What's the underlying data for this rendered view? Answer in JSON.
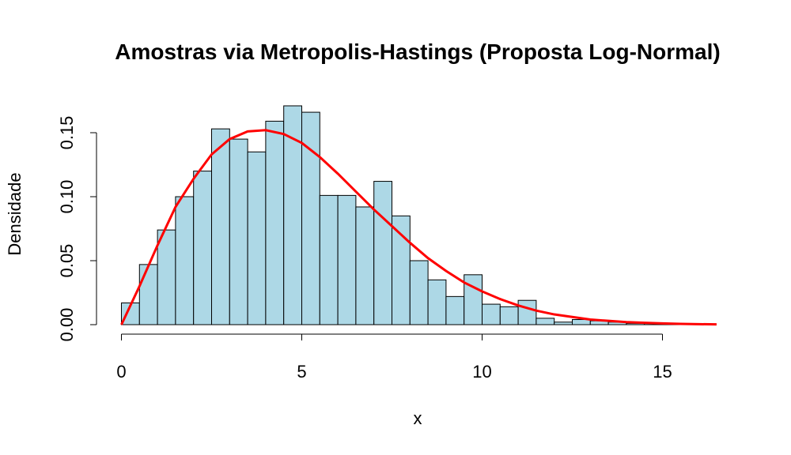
{
  "chart_data": {
    "type": "bar",
    "title": "Amostras via Metropolis-Hastings (Proposta Log-Normal)",
    "xlabel": "x",
    "ylabel": "Densidade",
    "xlim": [
      0,
      16.5
    ],
    "ylim": [
      0,
      0.17
    ],
    "x_ticks": [
      0,
      5,
      10,
      15
    ],
    "x_tick_labels": [
      "0",
      "5",
      "10",
      "15"
    ],
    "y_ticks": [
      0,
      0.05,
      0.1,
      0.15
    ],
    "y_tick_labels": [
      "0.00",
      "0.05",
      "0.10",
      "0.15"
    ],
    "bin_width": 0.5,
    "bins": {
      "x0": [
        0,
        0.5,
        1,
        1.5,
        2,
        2.5,
        3,
        3.5,
        4,
        4.5,
        5,
        5.5,
        6,
        6.5,
        7,
        7.5,
        8,
        8.5,
        9,
        9.5,
        10,
        10.5,
        11,
        11.5,
        12,
        12.5,
        13,
        13.5,
        14,
        14.5,
        15
      ],
      "density": [
        0.017,
        0.047,
        0.074,
        0.1,
        0.12,
        0.153,
        0.145,
        0.135,
        0.159,
        0.171,
        0.166,
        0.101,
        0.101,
        0.092,
        0.112,
        0.085,
        0.05,
        0.035,
        0.022,
        0.039,
        0.016,
        0.014,
        0.019,
        0.005,
        0.002,
        0.004,
        0.003,
        0.002,
        0.001,
        0.001,
        0.001
      ]
    },
    "series": [
      {
        "name": "",
        "type": "line",
        "color": "#ff0000",
        "x": [
          0,
          0.5,
          1,
          1.5,
          2,
          2.5,
          3,
          3.5,
          4,
          4.5,
          5,
          5.5,
          6,
          6.5,
          7,
          7.5,
          8,
          8.5,
          9,
          9.5,
          10,
          10.5,
          11,
          11.5,
          12,
          12.5,
          13,
          13.5,
          14,
          14.5,
          15,
          15.5,
          16,
          16.5
        ],
        "y": [
          0.0,
          0.03,
          0.062,
          0.092,
          0.114,
          0.133,
          0.145,
          0.151,
          0.152,
          0.149,
          0.142,
          0.131,
          0.118,
          0.104,
          0.09,
          0.077,
          0.064,
          0.052,
          0.042,
          0.033,
          0.026,
          0.02,
          0.015,
          0.011,
          0.008,
          0.006,
          0.004,
          0.003,
          0.002,
          0.0015,
          0.001,
          0.0006,
          0.0004,
          0.0002
        ]
      }
    ],
    "colors": {
      "bar_fill": "#add8e6",
      "bar_stroke": "#000000",
      "curve": "#ff0000"
    },
    "grid": false,
    "legend": "none"
  }
}
